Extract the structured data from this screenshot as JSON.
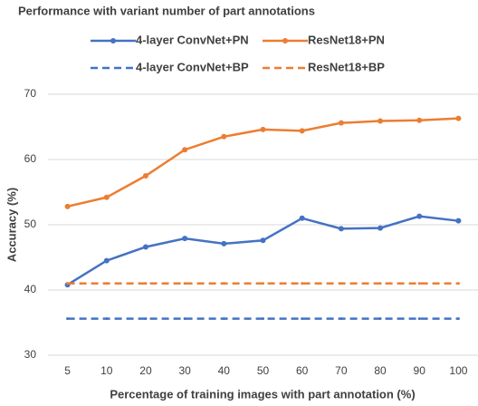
{
  "chart_data": {
    "type": "line",
    "title": "Performance with variant number of part annotations",
    "xlabel": "Percentage of training images with part annotation (%)",
    "ylabel": "Accuracy (%)",
    "categories": [
      5,
      10,
      20,
      30,
      40,
      50,
      60,
      70,
      80,
      90,
      100
    ],
    "series": [
      {
        "name": "4-layer ConvNet+PN",
        "color": "#4472c4",
        "dashed": false,
        "values": [
          40.8,
          44.5,
          46.6,
          47.9,
          47.1,
          47.6,
          51.0,
          49.4,
          49.5,
          51.3,
          50.6
        ]
      },
      {
        "name": "ResNet18+PN",
        "color": "#ed7d31",
        "dashed": false,
        "values": [
          52.8,
          54.2,
          57.5,
          61.5,
          63.5,
          64.6,
          64.4,
          65.6,
          65.9,
          66.0,
          66.3
        ]
      },
      {
        "name": "4-layer ConvNet+BP",
        "color": "#4472c4",
        "dashed": true,
        "values": [
          35.6,
          35.6,
          35.6,
          35.6,
          35.6,
          35.6,
          35.6,
          35.6,
          35.6,
          35.6,
          35.6
        ]
      },
      {
        "name": "ResNet18+BP",
        "color": "#ed7d31",
        "dashed": true,
        "values": [
          41.0,
          41.0,
          41.0,
          41.0,
          41.0,
          41.0,
          41.0,
          41.0,
          41.0,
          41.0,
          41.0
        ]
      }
    ],
    "ylim": [
      30,
      70
    ],
    "yticks": [
      30,
      40,
      50,
      60,
      70
    ],
    "grid": true
  }
}
